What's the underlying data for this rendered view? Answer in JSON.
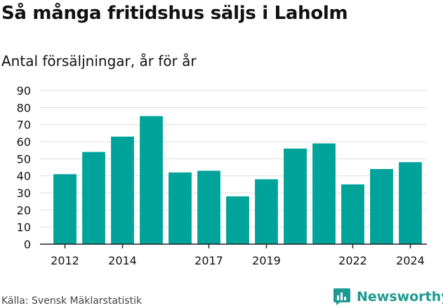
{
  "title": "Så många fritidshus säljs i Laholm",
  "subtitle": "Antal försäljningar, år för år",
  "source": "Källa: Svensk Mäklarstatistik",
  "brand": {
    "name": "Newsworthy",
    "icon": "bar-chart-logo-icon",
    "color": "#1d9a91"
  },
  "colors": {
    "bar": "#00a39a",
    "grid": "#dedede",
    "axis": "#222222",
    "text": "#111111"
  },
  "chart_data": {
    "type": "bar",
    "categories": [
      "2012",
      "2013",
      "2014",
      "2015",
      "2016",
      "2017",
      "2018",
      "2019",
      "2020",
      "2021",
      "2022",
      "2023",
      "2024"
    ],
    "x_tick_labels": [
      "2012",
      "",
      "2014",
      "",
      "",
      "2017",
      "",
      "2019",
      "",
      "",
      "2022",
      "",
      "2024"
    ],
    "values": [
      41,
      54,
      63,
      75,
      42,
      43,
      28,
      38,
      56,
      59,
      35,
      44,
      48
    ],
    "ylim": [
      0,
      90
    ],
    "yticks": [
      0,
      10,
      20,
      30,
      40,
      50,
      60,
      70,
      80,
      90
    ],
    "xlabel": "",
    "ylabel": "",
    "grid": true,
    "legend": "none"
  }
}
